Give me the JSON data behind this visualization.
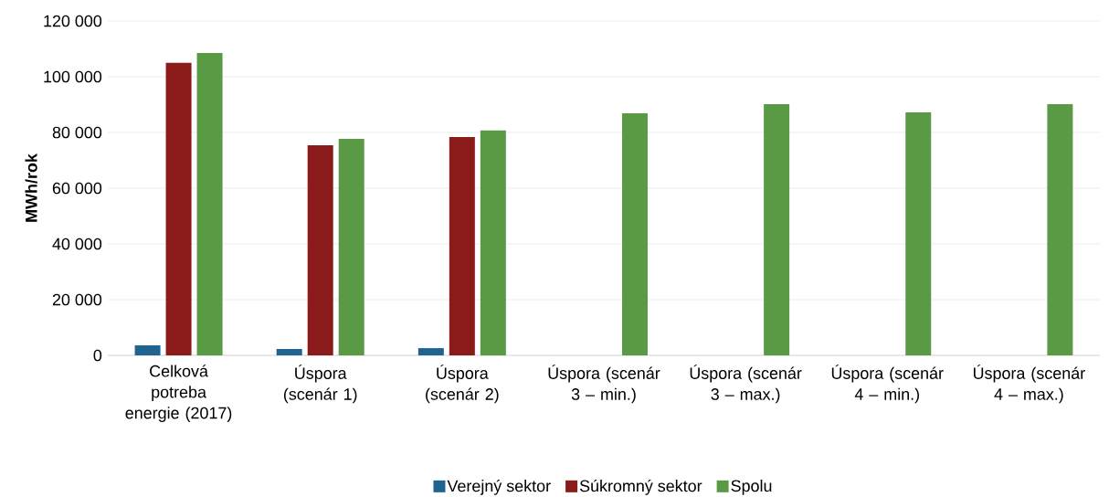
{
  "chart_data": {
    "type": "bar",
    "ylabel": "MWh/rok",
    "categories": [
      "Celková potreba energie (2017)",
      "Úspora (scenár 1)",
      "Úspora (scenár 2)",
      "Úspora (scenár 3 – min.)",
      "Úspora (scenár 3 – max.)",
      "Úspora (scenár 4 – min.)",
      "Úspora (scenár 4 – max.)"
    ],
    "series": [
      {
        "name": "Verejný sektor",
        "color": "#1f6391",
        "values": [
          3600,
          2300,
          2600,
          null,
          null,
          null,
          null
        ]
      },
      {
        "name": "Súkromný sektor",
        "color": "#8b1a1a",
        "values": [
          105000,
          75400,
          78400,
          null,
          null,
          null,
          null
        ]
      },
      {
        "name": "Spolu",
        "color": "#5b9a45",
        "values": [
          108500,
          77700,
          80700,
          86900,
          90200,
          87200,
          90200
        ]
      }
    ],
    "ylim": [
      0,
      120000
    ],
    "yticks": [
      {
        "value": 0,
        "label": "0"
      },
      {
        "value": 20000,
        "label": "20 000"
      },
      {
        "value": 40000,
        "label": "40 000"
      },
      {
        "value": 60000,
        "label": "60 000"
      },
      {
        "value": 80000,
        "label": "80 000"
      },
      {
        "value": 100000,
        "label": "100 000"
      },
      {
        "value": 120000,
        "label": "120 000"
      }
    ],
    "grid": "y",
    "legend": "bottom"
  }
}
